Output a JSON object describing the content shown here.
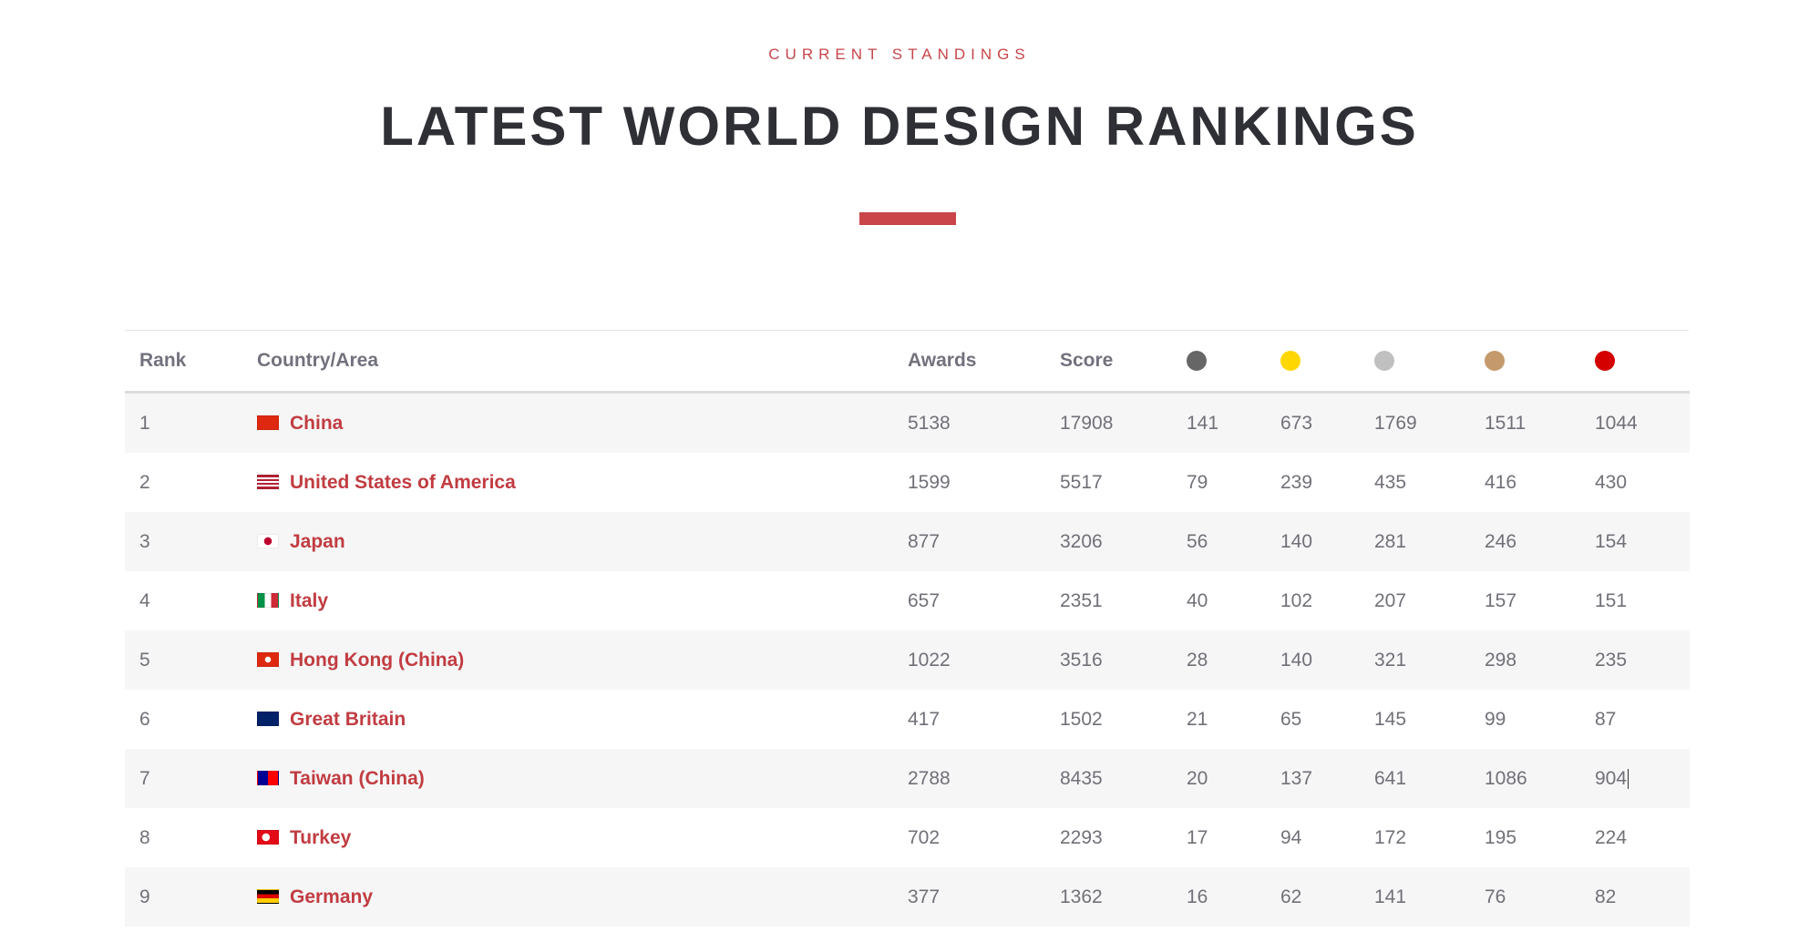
{
  "eyebrow": "CURRENT STANDINGS",
  "title": "LATEST WORLD DESIGN RANKINGS",
  "colors": {
    "accent": "#c9454a",
    "medal_platinum": "#666666",
    "medal_gold": "#ffd700",
    "medal_silver": "#c0c0c0",
    "medal_bronze": "#c49a6c",
    "medal_iron": "#d40000"
  },
  "table": {
    "headers": {
      "rank": "Rank",
      "country": "Country/Area",
      "awards": "Awards",
      "score": "Score"
    },
    "medal_icons": [
      "platinum-medal-icon",
      "gold-medal-icon",
      "silver-medal-icon",
      "bronze-medal-icon",
      "iron-medal-icon"
    ],
    "rows": [
      {
        "rank": "1",
        "country": "China",
        "flag": "china-flag-icon",
        "awards": "5138",
        "score": "17908",
        "m1": "141",
        "m2": "673",
        "m3": "1769",
        "m4": "1511",
        "m5": "1044"
      },
      {
        "rank": "2",
        "country": "United States of America",
        "flag": "usa-flag-icon",
        "awards": "1599",
        "score": "5517",
        "m1": "79",
        "m2": "239",
        "m3": "435",
        "m4": "416",
        "m5": "430"
      },
      {
        "rank": "3",
        "country": "Japan",
        "flag": "japan-flag-icon",
        "awards": "877",
        "score": "3206",
        "m1": "56",
        "m2": "140",
        "m3": "281",
        "m4": "246",
        "m5": "154"
      },
      {
        "rank": "4",
        "country": "Italy",
        "flag": "italy-flag-icon",
        "awards": "657",
        "score": "2351",
        "m1": "40",
        "m2": "102",
        "m3": "207",
        "m4": "157",
        "m5": "151"
      },
      {
        "rank": "5",
        "country": "Hong Kong (China)",
        "flag": "hong-kong-flag-icon",
        "awards": "1022",
        "score": "3516",
        "m1": "28",
        "m2": "140",
        "m3": "321",
        "m4": "298",
        "m5": "235"
      },
      {
        "rank": "6",
        "country": "Great Britain",
        "flag": "great-britain-flag-icon",
        "awards": "417",
        "score": "1502",
        "m1": "21",
        "m2": "65",
        "m3": "145",
        "m4": "99",
        "m5": "87"
      },
      {
        "rank": "7",
        "country": "Taiwan (China)",
        "flag": "taiwan-flag-icon",
        "awards": "2788",
        "score": "8435",
        "m1": "20",
        "m2": "137",
        "m3": "641",
        "m4": "1086",
        "m5": "904"
      },
      {
        "rank": "8",
        "country": "Turkey",
        "flag": "turkey-flag-icon",
        "awards": "702",
        "score": "2293",
        "m1": "17",
        "m2": "94",
        "m3": "172",
        "m4": "195",
        "m5": "224"
      },
      {
        "rank": "9",
        "country": "Germany",
        "flag": "germany-flag-icon",
        "awards": "377",
        "score": "1362",
        "m1": "16",
        "m2": "62",
        "m3": "141",
        "m4": "76",
        "m5": "82"
      }
    ]
  }
}
